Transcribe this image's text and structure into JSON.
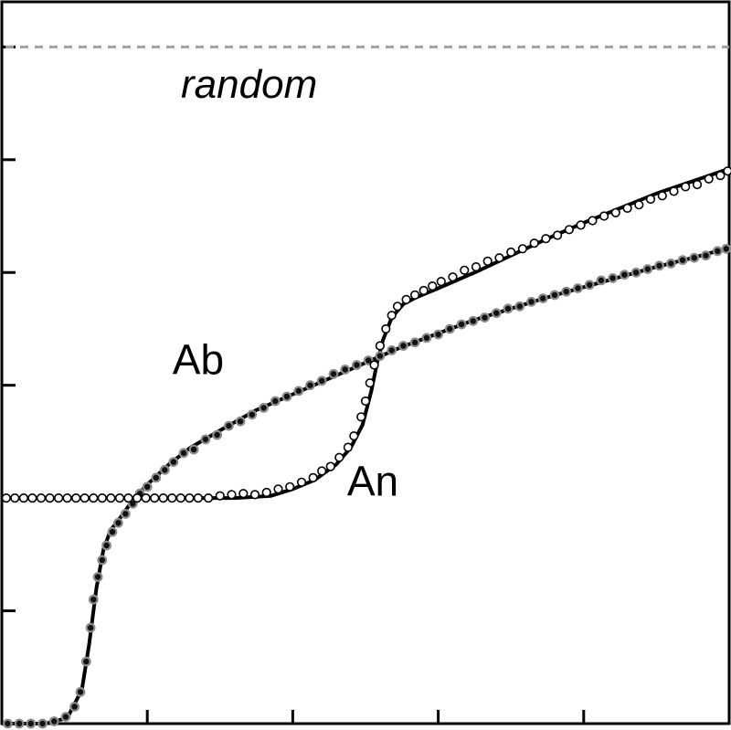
{
  "chart_data": {
    "type": "scatter",
    "xlim": [
      0,
      5
    ],
    "ylim": [
      0,
      6.4
    ],
    "grid": false,
    "random_level": 6,
    "annotations": {
      "random": "random",
      "ab": "Ab",
      "an": "An"
    },
    "series": [
      {
        "name": "Ab",
        "marker": "filled-dark",
        "fit": [
          [
            0,
            0
          ],
          [
            0.3,
            0
          ],
          [
            0.45,
            0.05
          ],
          [
            0.55,
            0.3
          ],
          [
            0.6,
            0.7
          ],
          [
            0.65,
            1.2
          ],
          [
            0.7,
            1.55
          ],
          [
            0.75,
            1.72
          ],
          [
            0.8,
            1.8
          ],
          [
            0.9,
            1.98
          ],
          [
            1.0,
            2.12
          ],
          [
            1.15,
            2.3
          ],
          [
            1.3,
            2.45
          ],
          [
            1.5,
            2.6
          ],
          [
            1.75,
            2.78
          ],
          [
            2.0,
            2.92
          ],
          [
            2.25,
            3.06
          ],
          [
            2.5,
            3.2
          ],
          [
            2.75,
            3.34
          ],
          [
            3.0,
            3.46
          ],
          [
            3.25,
            3.58
          ],
          [
            3.5,
            3.68
          ],
          [
            3.75,
            3.78
          ],
          [
            4.0,
            3.87
          ],
          [
            4.25,
            3.96
          ],
          [
            4.5,
            4.05
          ],
          [
            4.75,
            4.13
          ],
          [
            5.0,
            4.22
          ]
        ],
        "markers": [
          [
            0.04,
            0.0
          ],
          [
            0.12,
            0.0
          ],
          [
            0.2,
            0.0
          ],
          [
            0.28,
            0.0
          ],
          [
            0.36,
            0.02
          ],
          [
            0.44,
            0.06
          ],
          [
            0.5,
            0.15
          ],
          [
            0.54,
            0.28
          ],
          [
            0.58,
            0.55
          ],
          [
            0.61,
            0.85
          ],
          [
            0.63,
            1.1
          ],
          [
            0.66,
            1.3
          ],
          [
            0.69,
            1.45
          ],
          [
            0.72,
            1.58
          ],
          [
            0.76,
            1.7
          ],
          [
            0.8,
            1.78
          ],
          [
            0.85,
            1.86
          ],
          [
            0.9,
            1.95
          ],
          [
            0.95,
            2.04
          ],
          [
            1.0,
            2.1
          ],
          [
            1.06,
            2.18
          ],
          [
            1.12,
            2.25
          ],
          [
            1.18,
            2.32
          ],
          [
            1.25,
            2.4
          ],
          [
            1.32,
            2.43
          ],
          [
            1.4,
            2.52
          ],
          [
            1.48,
            2.56
          ],
          [
            1.56,
            2.64
          ],
          [
            1.64,
            2.68
          ],
          [
            1.72,
            2.74
          ],
          [
            1.8,
            2.8
          ],
          [
            1.88,
            2.86
          ],
          [
            1.96,
            2.9
          ],
          [
            2.04,
            2.95
          ],
          [
            2.12,
            3.0
          ],
          [
            2.2,
            3.04
          ],
          [
            2.28,
            3.1
          ],
          [
            2.36,
            3.14
          ],
          [
            2.44,
            3.18
          ],
          [
            2.52,
            3.22
          ],
          [
            2.6,
            3.26
          ],
          [
            2.68,
            3.31
          ],
          [
            2.76,
            3.35
          ],
          [
            2.84,
            3.38
          ],
          [
            2.92,
            3.42
          ],
          [
            3.0,
            3.45
          ],
          [
            3.08,
            3.5
          ],
          [
            3.16,
            3.54
          ],
          [
            3.24,
            3.57
          ],
          [
            3.32,
            3.6
          ],
          [
            3.4,
            3.64
          ],
          [
            3.48,
            3.68
          ],
          [
            3.56,
            3.7
          ],
          [
            3.64,
            3.74
          ],
          [
            3.72,
            3.77
          ],
          [
            3.8,
            3.8
          ],
          [
            3.88,
            3.83
          ],
          [
            3.96,
            3.86
          ],
          [
            4.04,
            3.89
          ],
          [
            4.12,
            3.93
          ],
          [
            4.2,
            3.95
          ],
          [
            4.28,
            3.98
          ],
          [
            4.36,
            4.0
          ],
          [
            4.44,
            4.03
          ],
          [
            4.52,
            4.06
          ],
          [
            4.6,
            4.08
          ],
          [
            4.68,
            4.11
          ],
          [
            4.76,
            4.13
          ],
          [
            4.84,
            4.15
          ],
          [
            4.92,
            4.19
          ],
          [
            4.98,
            4.21
          ]
        ]
      },
      {
        "name": "An",
        "marker": "open",
        "fit": [
          [
            0,
            2.0
          ],
          [
            1.3,
            2.0
          ],
          [
            1.6,
            2.0
          ],
          [
            1.85,
            2.02
          ],
          [
            2.0,
            2.08
          ],
          [
            2.15,
            2.16
          ],
          [
            2.3,
            2.3
          ],
          [
            2.4,
            2.45
          ],
          [
            2.48,
            2.65
          ],
          [
            2.54,
            2.95
          ],
          [
            2.58,
            3.2
          ],
          [
            2.62,
            3.4
          ],
          [
            2.68,
            3.6
          ],
          [
            2.76,
            3.72
          ],
          [
            2.85,
            3.78
          ],
          [
            3.0,
            3.86
          ],
          [
            3.25,
            4.0
          ],
          [
            3.5,
            4.15
          ],
          [
            3.75,
            4.3
          ],
          [
            4.0,
            4.44
          ],
          [
            4.25,
            4.57
          ],
          [
            4.5,
            4.7
          ],
          [
            4.75,
            4.81
          ],
          [
            5.0,
            4.92
          ]
        ],
        "markers": [
          [
            0.03,
            2.0
          ],
          [
            0.09,
            2.0
          ],
          [
            0.15,
            2.0
          ],
          [
            0.21,
            2.0
          ],
          [
            0.27,
            2.0
          ],
          [
            0.33,
            2.0
          ],
          [
            0.39,
            2.0
          ],
          [
            0.45,
            2.0
          ],
          [
            0.51,
            2.0
          ],
          [
            0.57,
            2.0
          ],
          [
            0.63,
            2.0
          ],
          [
            0.69,
            2.0
          ],
          [
            0.75,
            2.0
          ],
          [
            0.81,
            2.0
          ],
          [
            0.87,
            2.0
          ],
          [
            0.93,
            2.0
          ],
          [
            0.99,
            2.0
          ],
          [
            1.05,
            2.0
          ],
          [
            1.11,
            2.0
          ],
          [
            1.17,
            2.0
          ],
          [
            1.23,
            2.0
          ],
          [
            1.29,
            2.0
          ],
          [
            1.35,
            2.0
          ],
          [
            1.42,
            2.0
          ],
          [
            1.5,
            2.02
          ],
          [
            1.58,
            2.03
          ],
          [
            1.66,
            2.04
          ],
          [
            1.74,
            2.03
          ],
          [
            1.82,
            2.05
          ],
          [
            1.9,
            2.08
          ],
          [
            1.98,
            2.1
          ],
          [
            2.06,
            2.14
          ],
          [
            2.14,
            2.18
          ],
          [
            2.2,
            2.24
          ],
          [
            2.26,
            2.28
          ],
          [
            2.32,
            2.36
          ],
          [
            2.38,
            2.45
          ],
          [
            2.42,
            2.55
          ],
          [
            2.47,
            2.72
          ],
          [
            2.5,
            2.86
          ],
          [
            2.53,
            3.02
          ],
          [
            2.56,
            3.18
          ],
          [
            2.6,
            3.35
          ],
          [
            2.64,
            3.5
          ],
          [
            2.68,
            3.62
          ],
          [
            2.72,
            3.7
          ],
          [
            2.78,
            3.76
          ],
          [
            2.84,
            3.8
          ],
          [
            2.9,
            3.84
          ],
          [
            2.96,
            3.88
          ],
          [
            3.02,
            3.92
          ],
          [
            3.1,
            3.96
          ],
          [
            3.18,
            4.02
          ],
          [
            3.26,
            4.05
          ],
          [
            3.34,
            4.1
          ],
          [
            3.42,
            4.13
          ],
          [
            3.5,
            4.18
          ],
          [
            3.58,
            4.21
          ],
          [
            3.66,
            4.26
          ],
          [
            3.74,
            4.3
          ],
          [
            3.82,
            4.33
          ],
          [
            3.9,
            4.38
          ],
          [
            3.98,
            4.42
          ],
          [
            4.06,
            4.46
          ],
          [
            4.14,
            4.5
          ],
          [
            4.22,
            4.53
          ],
          [
            4.3,
            4.57
          ],
          [
            4.38,
            4.6
          ],
          [
            4.46,
            4.65
          ],
          [
            4.54,
            4.68
          ],
          [
            4.62,
            4.72
          ],
          [
            4.7,
            4.76
          ],
          [
            4.78,
            4.78
          ],
          [
            4.86,
            4.83
          ],
          [
            4.94,
            4.86
          ],
          [
            4.99,
            4.9
          ]
        ]
      }
    ]
  }
}
